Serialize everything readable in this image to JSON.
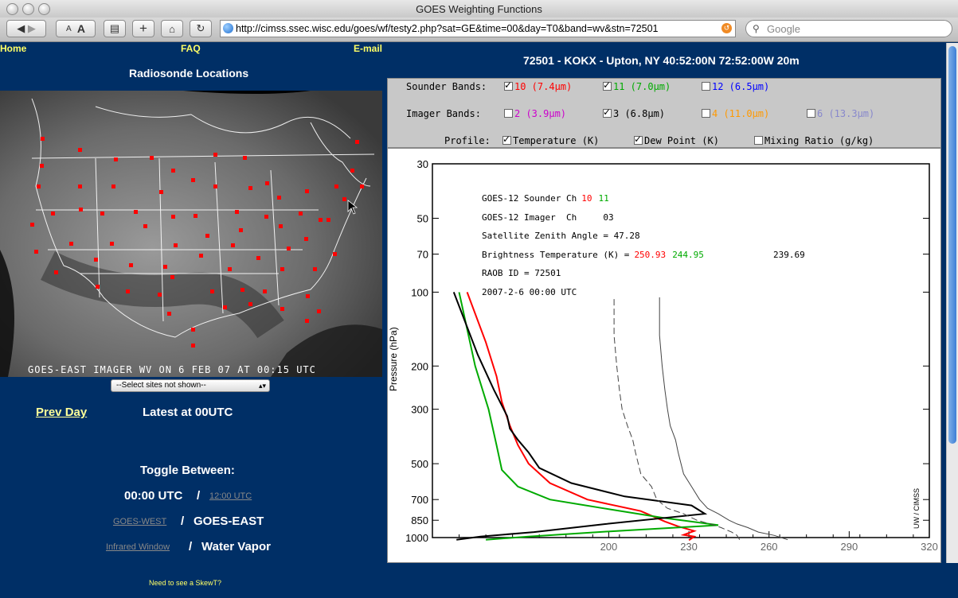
{
  "window": {
    "title": "GOES Weighting Functions"
  },
  "toolbar": {
    "url": "http://cimss.ssec.wisc.edu/goes/wf/testy2.php?sat=GE&time=00&day=T0&band=wv&stn=72501",
    "search_placeholder": "Google",
    "font_small": "A",
    "font_large": "A"
  },
  "nav": {
    "home": "Home",
    "faq": "FAQ",
    "email": "E-mail"
  },
  "left": {
    "heading": "Radiosonde Locations",
    "map_caption": "GOES-EAST IMAGER WV ON 6 FEB 07 AT 00:15 UTC",
    "select_value": "--Select sites not shown--",
    "prev_day": "Prev Day",
    "latest": "Latest at 00UTC",
    "toggle_heading": "Toggle Between:",
    "time_current": "00:00 UTC",
    "time_alt": "12:00 UTC",
    "sat_alt": "GOES-WEST",
    "sat_current": "GOES-EAST",
    "band_alt": "Infrared Window",
    "band_current": "Water Vapor",
    "slash": "/",
    "skewt": "Need to see a SkewT?"
  },
  "station_title": "72501 - KOKX - Upton, NY 40:52:00N 72:52:00W 20m",
  "controls": {
    "sounder_label": "Sounder Bands:",
    "imager_label": "Imager  Bands:",
    "profile_label": "Profile:",
    "sounder": [
      {
        "label": "10 (7.4μm)",
        "checked": true,
        "color": "#ff0000"
      },
      {
        "label": "11 (7.0μm)",
        "checked": true,
        "color": "#00aa00"
      },
      {
        "label": "12 (6.5μm)",
        "checked": false,
        "color": "#0000ff"
      }
    ],
    "imager": [
      {
        "label": "2 (3.9μm)",
        "checked": false,
        "color": "#cc00cc"
      },
      {
        "label": "3 (6.8μm)",
        "checked": true,
        "color": "#000000"
      },
      {
        "label": "4 (11.0μm)",
        "checked": false,
        "color": "#ff9900"
      },
      {
        "label": "6 (13.3μm)",
        "checked": false,
        "color": "#8888cc"
      }
    ],
    "profile": [
      {
        "label": "Temperature (K)",
        "checked": true
      },
      {
        "label": "Dew Point (K)",
        "checked": true
      },
      {
        "label": "Mixing Ratio (g/kg)",
        "checked": false
      }
    ]
  },
  "plot_text": {
    "line1_prefix": "GOES-12 Sounder Ch",
    "line1_ch10": "10",
    "line1_ch11": "11",
    "line2": "GOES-12 Imager  Ch     03",
    "line3": "Satellite Zenith Angle = 47.28",
    "line4_prefix": "Brightness Temperature (K) =",
    "bt_red": "250.93",
    "bt_green": "244.95",
    "bt_black": "239.69",
    "line5": "RAOB ID = 72501",
    "line6": "2007-2-6 00:00 UTC",
    "credit": "UW / CIMSS"
  },
  "chart_data": {
    "type": "line",
    "ylabel": "Pressure (hPa)",
    "y_scale": "log (reversed)",
    "ylim": [
      1000,
      30
    ],
    "y_ticks": [
      30,
      50,
      70,
      100,
      200,
      300,
      500,
      700,
      850,
      1000
    ],
    "x_ticks": [
      200,
      230,
      260,
      290,
      320
    ],
    "xlim": [
      134,
      320
    ],
    "series": [
      {
        "name": "10",
        "color": "#ff0000",
        "x": [
          230,
          232,
          228,
          232,
          226,
          221,
          212,
          192,
          178,
          170,
          166,
          163,
          160,
          158,
          154,
          147
        ],
        "y": [
          1025,
          990,
          975,
          940,
          900,
          860,
          780,
          700,
          600,
          500,
          420,
          350,
          280,
          220,
          160,
          100
        ]
      },
      {
        "name": "11",
        "color": "#00aa00",
        "x": [
          154,
          170,
          203,
          241,
          220,
          198,
          178,
          166,
          160,
          158,
          155,
          150,
          144
        ],
        "y": [
          1020,
          990,
          940,
          890,
          830,
          760,
          700,
          620,
          530,
          420,
          300,
          200,
          100
        ]
      },
      {
        "name": "03",
        "color": "#000000",
        "x": [
          143,
          152,
          172,
          199,
          236,
          231,
          206,
          186,
          174,
          170,
          166,
          163,
          162,
          157,
          151,
          142
        ],
        "y": [
          1020,
          990,
          950,
          880,
          800,
          740,
          680,
          600,
          520,
          450,
          400,
          360,
          320,
          250,
          180,
          100
        ]
      },
      {
        "name": "Temperature (K)",
        "color": "#444444",
        "x": [
          267,
          262,
          256,
          252,
          248,
          245,
          241,
          237,
          234,
          231,
          228,
          226,
          225,
          223,
          222,
          221,
          220,
          219,
          219
        ],
        "y": [
          1020,
          980,
          950,
          910,
          880,
          850,
          800,
          760,
          700,
          620,
          550,
          450,
          400,
          350,
          300,
          250,
          200,
          150,
          105
        ]
      },
      {
        "name": "Dew Point (K)",
        "color": "#444444",
        "x": [
          249,
          248,
          246,
          242,
          238,
          233,
          228,
          222,
          218,
          216,
          212,
          210,
          209,
          207,
          205,
          204,
          203,
          202,
          202
        ],
        "y": [
          1020,
          980,
          950,
          910,
          880,
          850,
          800,
          760,
          700,
          620,
          550,
          450,
          400,
          350,
          300,
          250,
          200,
          150,
          105
        ]
      }
    ]
  }
}
